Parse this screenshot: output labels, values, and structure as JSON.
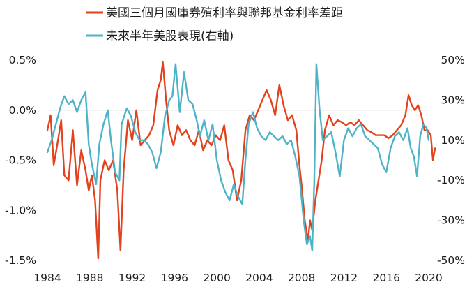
{
  "chart_data": {
    "type": "line",
    "title": "",
    "x_range": [
      1984,
      2020
    ],
    "x_ticks": [
      "1984",
      "1988",
      "1992",
      "1996",
      "2000",
      "2004",
      "2008",
      "2012",
      "2016",
      "2020"
    ],
    "y_left": {
      "label": "",
      "range": [
        -1.5,
        0.5
      ],
      "ticks": [
        "0.5%",
        "0.0%",
        "-0.5%",
        "-1.0%",
        "-1.5%"
      ],
      "tick_values": [
        0.5,
        0.0,
        -0.5,
        -1.0,
        -1.5
      ]
    },
    "y_right": {
      "label": "",
      "range": [
        -50,
        50
      ],
      "ticks": [
        "50%",
        "30%",
        "10%",
        "-10%",
        "-30%",
        "-50%"
      ],
      "tick_values": [
        50,
        30,
        10,
        -10,
        -30,
        -50
      ]
    },
    "reference_line": {
      "axis": "left",
      "value": 0.0
    },
    "grid": false,
    "legend_position": "top-center",
    "series": [
      {
        "name": "美國三個月國庫券殖利率與聯邦基金利率差距",
        "axis": "left",
        "color": "#e2431e",
        "points": [
          [
            1984.0,
            -0.2
          ],
          [
            1984.3,
            -0.05
          ],
          [
            1984.6,
            -0.55
          ],
          [
            1985.0,
            -0.3
          ],
          [
            1985.3,
            -0.1
          ],
          [
            1985.6,
            -0.65
          ],
          [
            1986.0,
            -0.7
          ],
          [
            1986.4,
            -0.2
          ],
          [
            1986.8,
            -0.75
          ],
          [
            1987.2,
            -0.4
          ],
          [
            1987.6,
            -0.6
          ],
          [
            1987.9,
            -0.8
          ],
          [
            1988.2,
            -0.65
          ],
          [
            1988.5,
            -0.9
          ],
          [
            1988.8,
            -1.48
          ],
          [
            1989.0,
            -0.7
          ],
          [
            1989.4,
            -0.5
          ],
          [
            1989.8,
            -0.6
          ],
          [
            1990.2,
            -0.5
          ],
          [
            1990.6,
            -0.8
          ],
          [
            1990.9,
            -1.4
          ],
          [
            1991.2,
            -0.6
          ],
          [
            1991.6,
            -0.1
          ],
          [
            1992.0,
            -0.3
          ],
          [
            1992.4,
            0.0
          ],
          [
            1992.8,
            -0.35
          ],
          [
            1993.2,
            -0.3
          ],
          [
            1993.6,
            -0.25
          ],
          [
            1994.0,
            -0.15
          ],
          [
            1994.4,
            0.2
          ],
          [
            1994.7,
            0.3
          ],
          [
            1994.9,
            0.48
          ],
          [
            1995.2,
            0.1
          ],
          [
            1995.5,
            -0.2
          ],
          [
            1995.9,
            -0.35
          ],
          [
            1996.3,
            -0.15
          ],
          [
            1996.7,
            -0.25
          ],
          [
            1997.1,
            -0.2
          ],
          [
            1997.5,
            -0.3
          ],
          [
            1997.9,
            -0.35
          ],
          [
            1998.3,
            -0.2
          ],
          [
            1998.7,
            -0.4
          ],
          [
            1999.1,
            -0.3
          ],
          [
            1999.5,
            -0.35
          ],
          [
            1999.9,
            -0.25
          ],
          [
            2000.3,
            -0.3
          ],
          [
            2000.7,
            -0.15
          ],
          [
            2001.1,
            -0.5
          ],
          [
            2001.5,
            -0.6
          ],
          [
            2001.9,
            -0.9
          ],
          [
            2002.3,
            -0.7
          ],
          [
            2002.7,
            -0.2
          ],
          [
            2003.1,
            -0.05
          ],
          [
            2003.5,
            -0.1
          ],
          [
            2003.9,
            0.0
          ],
          [
            2004.3,
            0.1
          ],
          [
            2004.7,
            0.2
          ],
          [
            2005.1,
            0.1
          ],
          [
            2005.5,
            -0.05
          ],
          [
            2005.9,
            0.25
          ],
          [
            2006.3,
            0.05
          ],
          [
            2006.7,
            -0.1
          ],
          [
            2007.1,
            -0.05
          ],
          [
            2007.5,
            -0.2
          ],
          [
            2007.8,
            -0.55
          ],
          [
            2008.0,
            -0.75
          ],
          [
            2008.3,
            -1.1
          ],
          [
            2008.6,
            -1.3
          ],
          [
            2008.8,
            -1.1
          ],
          [
            2009.0,
            -1.2
          ],
          [
            2009.3,
            -0.9
          ],
          [
            2009.6,
            -0.7
          ],
          [
            2009.9,
            -0.5
          ],
          [
            2010.2,
            -0.2
          ],
          [
            2010.6,
            -0.05
          ],
          [
            2011.0,
            -0.15
          ],
          [
            2011.4,
            -0.1
          ],
          [
            2011.8,
            -0.12
          ],
          [
            2012.2,
            -0.15
          ],
          [
            2012.6,
            -0.12
          ],
          [
            2013.0,
            -0.15
          ],
          [
            2013.4,
            -0.1
          ],
          [
            2013.8,
            -0.15
          ],
          [
            2014.2,
            -0.2
          ],
          [
            2014.6,
            -0.22
          ],
          [
            2015.0,
            -0.25
          ],
          [
            2015.4,
            -0.25
          ],
          [
            2015.8,
            -0.25
          ],
          [
            2016.2,
            -0.28
          ],
          [
            2016.6,
            -0.25
          ],
          [
            2017.0,
            -0.2
          ],
          [
            2017.4,
            -0.15
          ],
          [
            2017.8,
            -0.05
          ],
          [
            2018.1,
            0.15
          ],
          [
            2018.4,
            0.05
          ],
          [
            2018.7,
            0.0
          ],
          [
            2019.0,
            0.05
          ],
          [
            2019.3,
            -0.05
          ],
          [
            2019.6,
            -0.2
          ],
          [
            2019.9,
            -0.2
          ],
          [
            2020.2,
            -0.25
          ],
          [
            2020.4,
            -0.5
          ],
          [
            2020.6,
            -0.38
          ]
        ]
      },
      {
        "name": "未來半年美股表現(右軸)",
        "axis": "right",
        "color": "#4fb3c8",
        "points": [
          [
            1984.0,
            4
          ],
          [
            1984.4,
            10
          ],
          [
            1984.8,
            18
          ],
          [
            1985.2,
            26
          ],
          [
            1985.6,
            32
          ],
          [
            1986.0,
            28
          ],
          [
            1986.4,
            30
          ],
          [
            1986.8,
            24
          ],
          [
            1987.2,
            30
          ],
          [
            1987.6,
            34
          ],
          [
            1987.9,
            8
          ],
          [
            1988.2,
            -2
          ],
          [
            1988.6,
            -12
          ],
          [
            1988.9,
            8
          ],
          [
            1989.3,
            18
          ],
          [
            1989.7,
            25
          ],
          [
            1990.0,
            10
          ],
          [
            1990.4,
            -6
          ],
          [
            1990.8,
            -10
          ],
          [
            1991.0,
            18
          ],
          [
            1991.5,
            26
          ],
          [
            1991.9,
            22
          ],
          [
            1992.3,
            14
          ],
          [
            1992.7,
            10
          ],
          [
            1993.1,
            10
          ],
          [
            1993.5,
            8
          ],
          [
            1993.9,
            4
          ],
          [
            1994.3,
            -4
          ],
          [
            1994.7,
            4
          ],
          [
            1995.1,
            22
          ],
          [
            1995.5,
            30
          ],
          [
            1995.8,
            32
          ],
          [
            1996.1,
            48
          ],
          [
            1996.5,
            24
          ],
          [
            1996.9,
            44
          ],
          [
            1997.3,
            30
          ],
          [
            1997.7,
            28
          ],
          [
            1998.1,
            20
          ],
          [
            1998.4,
            12
          ],
          [
            1998.8,
            20
          ],
          [
            1999.2,
            10
          ],
          [
            1999.6,
            18
          ],
          [
            2000.0,
            0
          ],
          [
            2000.4,
            -10
          ],
          [
            2000.8,
            -16
          ],
          [
            2001.2,
            -20
          ],
          [
            2001.6,
            -12
          ],
          [
            2002.0,
            -18
          ],
          [
            2002.4,
            -22
          ],
          [
            2002.7,
            0
          ],
          [
            2003.0,
            18
          ],
          [
            2003.4,
            24
          ],
          [
            2003.8,
            16
          ],
          [
            2004.2,
            12
          ],
          [
            2004.6,
            10
          ],
          [
            2005.0,
            14
          ],
          [
            2005.4,
            12
          ],
          [
            2005.8,
            10
          ],
          [
            2006.2,
            12
          ],
          [
            2006.6,
            8
          ],
          [
            2007.0,
            10
          ],
          [
            2007.4,
            2
          ],
          [
            2007.8,
            -8
          ],
          [
            2008.2,
            -30
          ],
          [
            2008.5,
            -42
          ],
          [
            2008.8,
            -38
          ],
          [
            2009.0,
            -45
          ],
          [
            2009.2,
            -10
          ],
          [
            2009.4,
            48
          ],
          [
            2009.7,
            25
          ],
          [
            2010.0,
            10
          ],
          [
            2010.4,
            12
          ],
          [
            2010.8,
            14
          ],
          [
            2011.2,
            4
          ],
          [
            2011.6,
            -8
          ],
          [
            2012.0,
            10
          ],
          [
            2012.4,
            16
          ],
          [
            2012.8,
            12
          ],
          [
            2013.2,
            16
          ],
          [
            2013.6,
            18
          ],
          [
            2014.0,
            12
          ],
          [
            2014.4,
            10
          ],
          [
            2014.8,
            8
          ],
          [
            2015.2,
            6
          ],
          [
            2015.6,
            -2
          ],
          [
            2016.0,
            -6
          ],
          [
            2016.4,
            6
          ],
          [
            2016.8,
            12
          ],
          [
            2017.2,
            14
          ],
          [
            2017.6,
            10
          ],
          [
            2018.0,
            16
          ],
          [
            2018.3,
            6
          ],
          [
            2018.6,
            2
          ],
          [
            2018.9,
            -8
          ],
          [
            2019.2,
            12
          ],
          [
            2019.5,
            18
          ],
          [
            2019.8,
            16
          ],
          [
            2020.0,
            10
          ]
        ]
      }
    ]
  }
}
